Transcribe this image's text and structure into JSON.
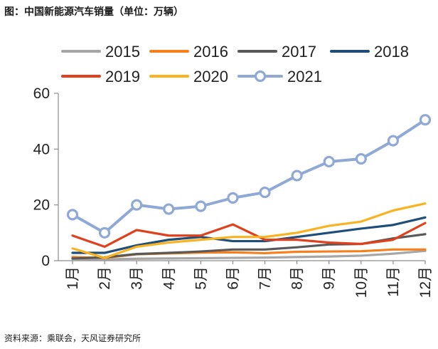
{
  "title": "图：中国新能源汽车销量（单位：万辆）",
  "source": "资料来源：乘联会，天风证券研究所",
  "chart_data": {
    "type": "line",
    "title": "图：中国新能源汽车销量（单位：万辆）",
    "xlabel": "",
    "ylabel": "",
    "ylim": [
      0,
      60
    ],
    "yticks": [
      "0",
      "20",
      "40",
      "60"
    ],
    "grid": false,
    "legend_position": "top",
    "categories": [
      "1月",
      "2月",
      "3月",
      "4月",
      "5月",
      "6月",
      "7月",
      "8月",
      "9月",
      "10月",
      "11月",
      "12月"
    ],
    "series": [
      {
        "name": "2015",
        "color": "#a6a6a6",
        "marker": false,
        "values": [
          0.6,
          0.5,
          0.7,
          0.8,
          0.9,
          1.0,
          1.1,
          1.3,
          1.5,
          1.8,
          2.5,
          3.5
        ]
      },
      {
        "name": "2016",
        "color": "#f5801e",
        "marker": false,
        "values": [
          1.3,
          1.0,
          2.3,
          2.6,
          2.9,
          3.0,
          2.7,
          3.2,
          3.3,
          3.4,
          4.0,
          4.0
        ]
      },
      {
        "name": "2017",
        "color": "#595959",
        "marker": false,
        "values": [
          0.8,
          1.2,
          2.4,
          2.8,
          3.3,
          4.0,
          4.0,
          4.8,
          5.8,
          6.0,
          8.0,
          9.5
        ]
      },
      {
        "name": "2018",
        "color": "#1f4e79",
        "marker": false,
        "values": [
          2.8,
          2.8,
          5.5,
          7.5,
          8.5,
          7.0,
          7.0,
          8.5,
          10.0,
          11.5,
          12.8,
          15.5
        ]
      },
      {
        "name": "2019",
        "color": "#e0401c",
        "marker": false,
        "values": [
          9.0,
          5.0,
          11.0,
          9.0,
          9.0,
          13.0,
          7.5,
          7.5,
          6.5,
          6.0,
          7.5,
          13.5
        ]
      },
      {
        "name": "2020",
        "color": "#f9b320",
        "marker": false,
        "values": [
          4.4,
          1.0,
          5.0,
          6.5,
          7.5,
          8.5,
          8.5,
          10.0,
          12.5,
          14.0,
          18.0,
          20.5
        ]
      },
      {
        "name": "2021",
        "color": "#8fa9d6",
        "marker": true,
        "values": [
          16.5,
          10.0,
          20.0,
          18.5,
          19.5,
          22.5,
          24.5,
          30.5,
          35.5,
          36.5,
          43.0,
          50.5
        ]
      }
    ]
  }
}
